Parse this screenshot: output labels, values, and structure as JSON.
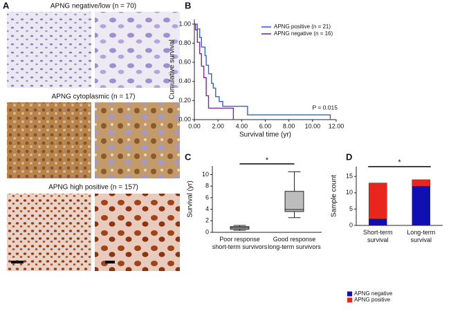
{
  "panel_labels": [
    "A",
    "B",
    "C",
    "D"
  ],
  "panel_a": {
    "titles": [
      "APNG negative/low (n = 70)",
      "APNG cytoplasmic (n = 17)",
      "APNG high positive (n = 157)"
    ]
  },
  "chart_data": [
    {
      "type": "line",
      "step": true,
      "xlabel": "Survival time (yr)",
      "ylabel": "Cumulative survival",
      "xlim": [
        0,
        12
      ],
      "ylim": [
        0,
        1.05
      ],
      "xticks": [
        {
          "value": 0,
          "label": "0.00"
        },
        {
          "value": 2,
          "label": "2.00"
        },
        {
          "value": 4,
          "label": "4.00"
        },
        {
          "value": 6,
          "label": "6.00"
        },
        {
          "value": 8,
          "label": "8.00"
        },
        {
          "value": 10,
          "label": "10.00"
        },
        {
          "value": 12,
          "label": "12.00"
        }
      ],
      "yticks": [
        {
          "value": 0,
          "label": "0.00"
        },
        {
          "value": 0.2,
          "label": "0.20"
        },
        {
          "value": 0.4,
          "label": "0.40"
        },
        {
          "value": 0.6,
          "label": "0.60"
        },
        {
          "value": 0.8,
          "label": "0.80"
        },
        {
          "value": 1,
          "label": "1.00"
        }
      ],
      "series": [
        {
          "name": "APNG positive (n = 21)",
          "color": "#3a5fd0",
          "x": [
            0,
            0.25,
            0.45,
            0.6,
            0.9,
            1.0,
            1.2,
            1.45,
            1.6,
            1.8,
            2.1,
            2.4,
            4.5,
            11.5
          ],
          "values": [
            1.0,
            0.95,
            0.86,
            0.76,
            0.67,
            0.57,
            0.48,
            0.38,
            0.33,
            0.24,
            0.19,
            0.14,
            0.05,
            0.0
          ]
        },
        {
          "name": "APNG negative (n = 16)",
          "color": "#7a2a9a",
          "x": [
            0,
            0.1,
            0.25,
            0.45,
            0.6,
            0.8,
            1.0,
            1.2,
            3.3
          ],
          "values": [
            1.0,
            0.94,
            0.81,
            0.69,
            0.56,
            0.44,
            0.25,
            0.12,
            0.0
          ]
        }
      ],
      "annotation": "P = 0.015"
    },
    {
      "type": "box",
      "ylabel": "Survival (yr)",
      "categories": [
        "Poor response\nshort-term survivors",
        "Good response\nlong-term survivors"
      ],
      "ylim": [
        0,
        11.5
      ],
      "yticks": [
        0,
        2,
        4,
        6,
        8,
        10
      ],
      "color": "#bdbdbd",
      "boxes": [
        {
          "whisker_low": 0.35,
          "q1": 0.55,
          "median": 0.8,
          "q3": 1.0,
          "whisker_high": 1.2
        },
        {
          "whisker_low": 2.55,
          "q1": 3.6,
          "median": 3.95,
          "q3": 7.1,
          "whisker_high": 10.5
        }
      ],
      "significance": "*"
    },
    {
      "type": "bar",
      "stacked": true,
      "ylabel": "Sample count",
      "categories": [
        "Short-term\nsurvival",
        "Long-term\nsurvival"
      ],
      "ylim": [
        0,
        18
      ],
      "yticks": [
        0,
        5,
        10,
        15
      ],
      "series": [
        {
          "name": "APNG negative",
          "color": "#1010b0",
          "values": [
            2,
            12
          ]
        },
        {
          "name": "APNG positive",
          "color": "#e8261c",
          "values": [
            11,
            2
          ]
        }
      ],
      "significance": "*"
    }
  ]
}
